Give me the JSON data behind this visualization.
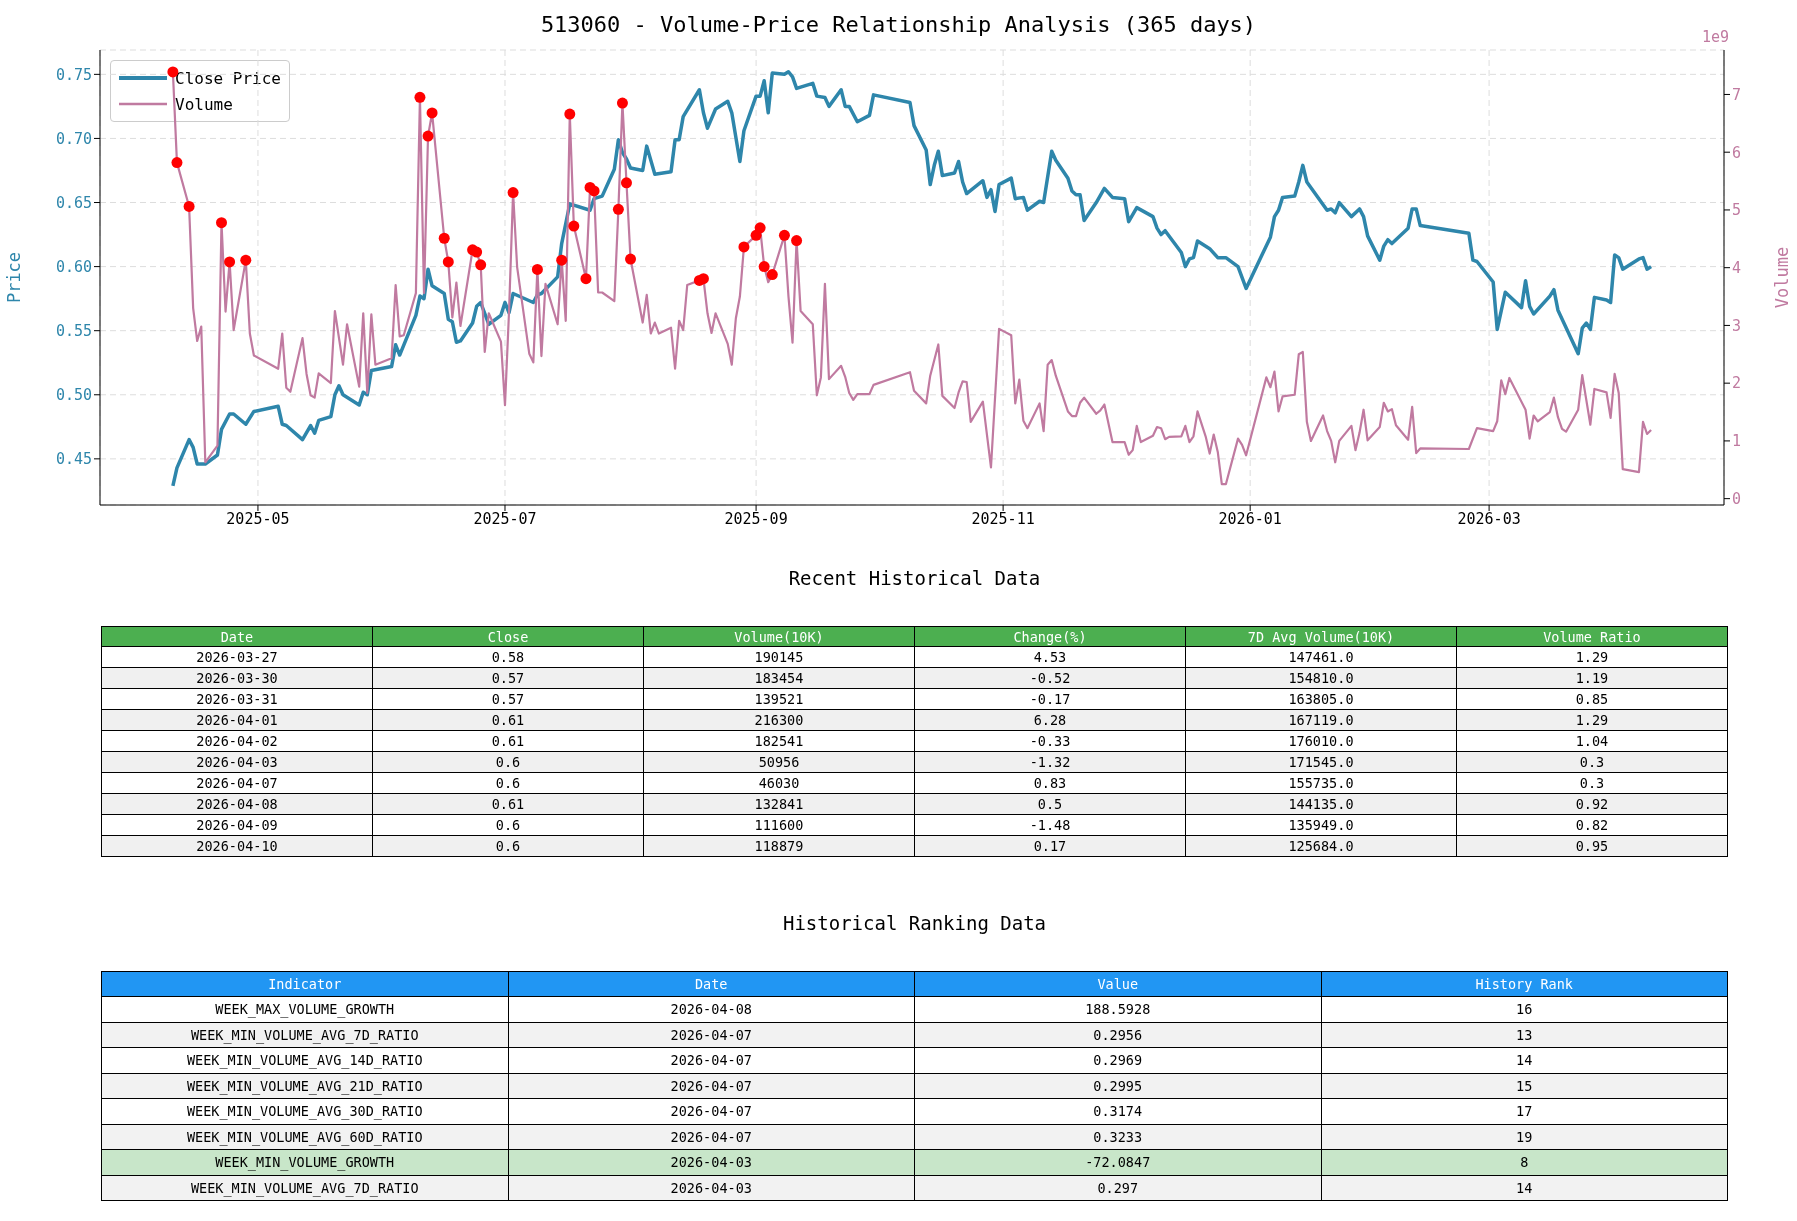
{
  "chart_data": [
    {
      "type": "line",
      "title": "513060 - Volume-Price Relationship Analysis (365 days)",
      "ylabel": "Price",
      "y2label": "Volume",
      "annotations": [
        "1e9"
      ],
      "xlim": [
        "2025-03-23",
        "2026-04-28"
      ],
      "xticks": [
        "2025-05",
        "2025-07",
        "2025-09",
        "2025-11",
        "2026-01",
        "2026-03"
      ],
      "ylim": [
        0.414,
        0.769
      ],
      "yticks": [
        0.45,
        {
          "value": 0.5,
          "label": "0.50"
        },
        0.55,
        {
          "value": 0.6,
          "label": "0.60"
        },
        0.65,
        {
          "value": 0.7,
          "label": "0.70"
        },
        0.75
      ],
      "y2lim": [
        -0.11,
        7.77
      ],
      "y2ticks": [
        0,
        1,
        2,
        3,
        4,
        5,
        6,
        7
      ],
      "grid": true,
      "legend": "top left",
      "marker": "none",
      "series": [
        {
          "name": "Close Price",
          "color": "#2e86ab",
          "x": [
            "2025-04-10",
            "2025-04-11",
            "2025-04-14",
            "2025-04-15",
            "2025-04-16",
            "2025-04-18",
            "2025-04-21",
            "2025-04-22",
            "2025-04-24",
            "2025-04-25",
            "2025-04-28",
            "2025-04-30",
            "2025-05-06",
            "2025-05-07",
            "2025-05-08",
            "2025-05-12",
            "2025-05-14",
            "2025-05-15",
            "2025-05-16",
            "2025-05-19",
            "2025-05-20",
            "2025-05-21",
            "2025-05-22",
            "2025-05-26",
            "2025-05-27",
            "2025-05-28",
            "2025-05-29",
            "2025-06-03",
            "2025-06-04",
            "2025-06-05",
            "2025-06-09",
            "2025-06-10",
            "2025-06-11",
            "2025-06-12",
            "2025-06-13",
            "2025-06-16",
            "2025-06-17",
            "2025-06-18",
            "2025-06-19",
            "2025-06-20",
            "2025-06-23",
            "2025-06-24",
            "2025-06-25",
            "2025-06-27",
            "2025-06-30",
            "2025-07-01",
            "2025-07-02",
            "2025-07-03",
            "2025-07-08",
            "2025-07-09",
            "2025-07-10",
            "2025-07-14",
            "2025-07-15",
            "2025-07-17",
            "2025-07-22",
            "2025-07-23",
            "2025-07-25",
            "2025-07-28",
            "2025-07-29",
            "2025-07-30",
            "2025-07-31",
            "2025-08-01",
            "2025-08-04",
            "2025-08-05",
            "2025-08-07",
            "2025-08-11",
            "2025-08-12",
            "2025-08-13",
            "2025-08-14",
            "2025-08-18",
            "2025-08-19",
            "2025-08-20",
            "2025-08-22",
            "2025-08-25",
            "2025-08-26",
            "2025-08-28",
            "2025-08-29",
            "2025-09-01",
            "2025-09-02",
            "2025-09-03",
            "2025-09-04",
            "2025-09-05",
            "2025-09-08",
            "2025-09-09",
            "2025-09-10",
            "2025-09-11",
            "2025-09-15",
            "2025-09-16",
            "2025-09-18",
            "2025-09-19",
            "2025-09-22",
            "2025-09-23",
            "2025-09-24",
            "2025-09-26",
            "2025-09-29",
            "2025-09-30",
            "2025-10-09",
            "2025-10-10",
            "2025-10-13",
            "2025-10-14",
            "2025-10-15",
            "2025-10-16",
            "2025-10-17",
            "2025-10-20",
            "2025-10-21",
            "2025-10-22",
            "2025-10-23",
            "2025-10-27",
            "2025-10-28",
            "2025-10-29",
            "2025-10-30",
            "2025-10-31",
            "2025-11-03",
            "2025-11-04",
            "2025-11-06",
            "2025-11-07",
            "2025-11-10",
            "2025-11-11",
            "2025-11-13",
            "2025-11-14",
            "2025-11-17",
            "2025-11-18",
            "2025-11-19",
            "2025-11-20",
            "2025-11-21",
            "2025-11-24",
            "2025-11-26",
            "2025-11-28",
            "2025-12-01",
            "2025-12-02",
            "2025-12-04",
            "2025-12-08",
            "2025-12-09",
            "2025-12-10",
            "2025-12-11",
            "2025-12-15",
            "2025-12-16",
            "2025-12-17",
            "2025-12-18",
            "2025-12-19",
            "2025-12-22",
            "2025-12-24",
            "2025-12-26",
            "2025-12-29",
            "2025-12-31",
            "2026-01-06",
            "2026-01-07",
            "2026-01-08",
            "2026-01-09",
            "2026-01-12",
            "2026-01-13",
            "2026-01-14",
            "2026-01-15",
            "2026-01-20",
            "2026-01-21",
            "2026-01-22",
            "2026-01-23",
            "2026-01-26",
            "2026-01-28",
            "2026-01-29",
            "2026-01-30",
            "2026-02-02",
            "2026-02-03",
            "2026-02-04",
            "2026-02-05",
            "2026-02-09",
            "2026-02-10",
            "2026-02-11",
            "2026-02-12",
            "2026-02-24",
            "2026-02-25",
            "2026-02-26",
            "2026-03-02",
            "2026-03-03",
            "2026-03-05",
            "2026-03-09",
            "2026-03-10",
            "2026-03-11",
            "2026-03-12",
            "2026-03-16",
            "2026-03-17",
            "2026-03-18",
            "2026-03-23",
            "2026-03-24",
            "2026-03-25",
            "2026-03-26",
            "2026-03-27",
            "2026-03-30",
            "2026-03-31",
            "2026-04-01",
            "2026-04-02",
            "2026-04-03",
            "2026-04-07",
            "2026-04-08",
            "2026-04-09",
            "2026-04-10"
          ],
          "values": [
            0.429,
            0.443,
            0.465,
            0.459,
            0.446,
            0.446,
            0.453,
            0.473,
            0.485,
            0.485,
            0.477,
            0.487,
            0.491,
            0.477,
            0.476,
            0.465,
            0.476,
            0.47,
            0.48,
            0.483,
            0.5,
            0.507,
            0.5,
            0.492,
            0.502,
            0.5,
            0.519,
            0.522,
            0.539,
            0.531,
            0.562,
            0.577,
            0.575,
            0.598,
            0.585,
            0.579,
            0.559,
            0.557,
            0.541,
            0.542,
            0.556,
            0.569,
            0.572,
            0.555,
            0.562,
            0.572,
            0.564,
            0.579,
            0.572,
            0.578,
            0.579,
            0.592,
            0.618,
            0.649,
            0.644,
            0.653,
            0.655,
            0.676,
            0.699,
            0.689,
            0.684,
            0.677,
            0.675,
            0.694,
            0.672,
            0.674,
            0.699,
            0.699,
            0.717,
            0.738,
            0.72,
            0.708,
            0.723,
            0.729,
            0.72,
            0.682,
            0.706,
            0.733,
            0.733,
            0.745,
            0.72,
            0.751,
            0.75,
            0.752,
            0.748,
            0.739,
            0.743,
            0.733,
            0.732,
            0.725,
            0.738,
            0.725,
            0.725,
            0.713,
            0.718,
            0.734,
            0.728,
            0.71,
            0.691,
            0.664,
            0.679,
            0.69,
            0.671,
            0.673,
            0.682,
            0.666,
            0.657,
            0.667,
            0.654,
            0.66,
            0.643,
            0.664,
            0.669,
            0.653,
            0.654,
            0.644,
            0.651,
            0.65,
            0.69,
            0.683,
            0.669,
            0.659,
            0.656,
            0.656,
            0.636,
            0.65,
            0.661,
            0.654,
            0.653,
            0.635,
            0.646,
            0.639,
            0.63,
            0.625,
            0.628,
            0.611,
            0.6,
            0.606,
            0.607,
            0.62,
            0.614,
            0.607,
            0.607,
            0.6,
            0.583,
            0.623,
            0.639,
            0.644,
            0.654,
            0.655,
            0.666,
            0.679,
            0.666,
            0.644,
            0.645,
            0.642,
            0.65,
            0.639,
            0.645,
            0.639,
            0.624,
            0.605,
            0.616,
            0.621,
            0.618,
            0.63,
            0.645,
            0.645,
            0.632,
            0.626,
            0.605,
            0.604,
            0.588,
            0.551,
            0.58,
            0.568,
            0.589,
            0.569,
            0.563,
            0.577,
            0.582,
            0.566,
            0.532,
            0.552,
            0.556,
            0.551,
            0.576,
            0.574,
            0.572,
            0.609,
            0.607,
            0.598,
            0.606,
            0.607,
            0.598,
            0.6
          ]
        },
        {
          "name": "Volume",
          "color": "#c07aa0",
          "axis": "y2",
          "x": [
            "2025-04-10",
            "2025-04-11",
            "2025-04-14",
            "2025-04-15",
            "2025-04-16",
            "2025-04-17",
            "2025-04-18",
            "2025-04-21",
            "2025-04-22",
            "2025-04-23",
            "2025-04-24",
            "2025-04-25",
            "2025-04-28",
            "2025-04-29",
            "2025-04-30",
            "2025-05-06",
            "2025-05-07",
            "2025-05-08",
            "2025-05-09",
            "2025-05-12",
            "2025-05-13",
            "2025-05-14",
            "2025-05-15",
            "2025-05-16",
            "2025-05-19",
            "2025-05-20",
            "2025-05-22",
            "2025-05-23",
            "2025-05-26",
            "2025-05-27",
            "2025-05-28",
            "2025-05-29",
            "2025-05-30",
            "2025-06-03",
            "2025-06-04",
            "2025-06-05",
            "2025-06-06",
            "2025-06-09",
            "2025-06-10",
            "2025-06-11",
            "2025-06-12",
            "2025-06-13",
            "2025-06-16",
            "2025-06-17",
            "2025-06-18",
            "2025-06-19",
            "2025-06-20",
            "2025-06-23",
            "2025-06-24",
            "2025-06-25",
            "2025-06-26",
            "2025-06-27",
            "2025-06-30",
            "2025-07-01",
            "2025-07-02",
            "2025-07-03",
            "2025-07-04",
            "2025-07-07",
            "2025-07-08",
            "2025-07-09",
            "2025-07-10",
            "2025-07-11",
            "2025-07-14",
            "2025-07-15",
            "2025-07-16",
            "2025-07-17",
            "2025-07-18",
            "2025-07-21",
            "2025-07-22",
            "2025-07-23",
            "2025-07-24",
            "2025-07-25",
            "2025-07-28",
            "2025-07-29",
            "2025-07-30",
            "2025-07-31",
            "2025-08-01",
            "2025-08-04",
            "2025-08-05",
            "2025-08-06",
            "2025-08-07",
            "2025-08-08",
            "2025-08-11",
            "2025-08-12",
            "2025-08-13",
            "2025-08-14",
            "2025-08-15",
            "2025-08-18",
            "2025-08-19",
            "2025-08-20",
            "2025-08-21",
            "2025-08-22",
            "2025-08-25",
            "2025-08-26",
            "2025-08-27",
            "2025-08-28",
            "2025-08-29",
            "2025-09-01",
            "2025-09-02",
            "2025-09-03",
            "2025-09-04",
            "2025-09-05",
            "2025-09-08",
            "2025-09-09",
            "2025-09-10",
            "2025-09-11",
            "2025-09-12",
            "2025-09-15",
            "2025-09-16",
            "2025-09-17",
            "2025-09-18",
            "2025-09-19",
            "2025-09-22",
            "2025-09-23",
            "2025-09-24",
            "2025-09-25",
            "2025-09-26",
            "2025-09-29",
            "2025-09-30",
            "2025-10-09",
            "2025-10-10",
            "2025-10-13",
            "2025-10-14",
            "2025-10-16",
            "2025-10-17",
            "2025-10-20",
            "2025-10-21",
            "2025-10-22",
            "2025-10-23",
            "2025-10-24",
            "2025-10-27",
            "2025-10-29",
            "2025-10-31",
            "2025-11-03",
            "2025-11-04",
            "2025-11-05",
            "2025-11-06",
            "2025-11-07",
            "2025-11-10",
            "2025-11-11",
            "2025-11-12",
            "2025-11-13",
            "2025-11-14",
            "2025-11-17",
            "2025-11-18",
            "2025-11-19",
            "2025-11-20",
            "2025-11-21",
            "2025-11-24",
            "2025-11-25",
            "2025-11-26",
            "2025-11-28",
            "2025-12-01",
            "2025-12-02",
            "2025-12-03",
            "2025-12-04",
            "2025-12-05",
            "2025-12-08",
            "2025-12-09",
            "2025-12-10",
            "2025-12-11",
            "2025-12-12",
            "2025-12-15",
            "2025-12-16",
            "2025-12-17",
            "2025-12-18",
            "2025-12-19",
            "2025-12-21",
            "2025-12-22",
            "2025-12-23",
            "2025-12-24",
            "2025-12-25",
            "2025-12-26",
            "2025-12-29",
            "2025-12-30",
            "2025-12-31",
            "2026-01-05",
            "2026-01-06",
            "2026-01-07",
            "2026-01-08",
            "2026-01-09",
            "2026-01-12",
            "2026-01-13",
            "2026-01-14",
            "2026-01-15",
            "2026-01-16",
            "2026-01-19",
            "2026-01-20",
            "2026-01-21",
            "2026-01-22",
            "2026-01-23",
            "2026-01-26",
            "2026-01-27",
            "2026-01-28",
            "2026-01-29",
            "2026-01-30",
            "2026-02-02",
            "2026-02-03",
            "2026-02-04",
            "2026-02-05",
            "2026-02-06",
            "2026-02-09",
            "2026-02-10",
            "2026-02-11",
            "2026-02-12",
            "2026-02-24",
            "2026-02-26",
            "2026-03-02",
            "2026-03-03",
            "2026-03-04",
            "2026-03-05",
            "2026-03-06",
            "2026-03-10",
            "2026-03-11",
            "2026-03-12",
            "2026-03-13",
            "2026-03-16",
            "2026-03-17",
            "2026-03-18",
            "2026-03-19",
            "2026-03-20",
            "2026-03-23",
            "2026-03-24",
            "2026-03-26",
            "2026-03-27",
            "2026-03-30",
            "2026-03-31",
            "2026-04-01",
            "2026-04-02",
            "2026-04-03",
            "2026-04-07",
            "2026-04-08",
            "2026-04-09",
            "2026-04-10"
          ],
          "values": [
            7.39,
            5.82,
            5.06,
            3.3,
            2.73,
            2.98,
            0.63,
            0.92,
            4.78,
            3.24,
            4.1,
            2.92,
            4.13,
            2.86,
            2.48,
            2.25,
            2.86,
            1.92,
            1.85,
            2.78,
            2.16,
            1.79,
            1.75,
            2.17,
            2.0,
            3.25,
            2.32,
            3.02,
            1.94,
            3.21,
            1.83,
            3.19,
            2.32,
            2.43,
            3.7,
            2.81,
            2.83,
            3.56,
            6.95,
            3.56,
            6.28,
            6.68,
            4.51,
            4.1,
            3.14,
            3.74,
            2.99,
            4.31,
            4.27,
            4.05,
            2.54,
            3.21,
            2.72,
            1.62,
            3.24,
            5.3,
            4.01,
            2.51,
            2.36,
            3.97,
            2.47,
            3.72,
            3.02,
            4.13,
            3.08,
            6.66,
            4.72,
            3.81,
            5.39,
            5.33,
            3.57,
            3.57,
            3.42,
            5.01,
            6.85,
            5.47,
            4.15,
            3.05,
            3.53,
            2.86,
            3.05,
            2.86,
            2.96,
            2.25,
            3.08,
            2.92,
            3.7,
            3.78,
            3.81,
            3.21,
            2.87,
            3.21,
            2.68,
            2.32,
            3.12,
            3.5,
            4.36,
            4.56,
            4.69,
            4.02,
            3.75,
            3.88,
            4.56,
            3.5,
            2.7,
            4.47,
            3.25,
            3.02,
            1.79,
            2.1,
            3.72,
            2.07,
            2.3,
            2.11,
            1.83,
            1.71,
            1.81,
            1.81,
            1.97,
            2.19,
            1.87,
            1.65,
            2.13,
            2.67,
            1.78,
            1.57,
            1.84,
            2.03,
            2.02,
            1.33,
            1.68,
            0.54,
            2.94,
            2.83,
            1.65,
            2.06,
            1.35,
            1.22,
            1.65,
            1.17,
            2.32,
            2.4,
            2.13,
            1.51,
            1.43,
            1.43,
            1.66,
            1.75,
            1.47,
            1.53,
            1.63,
            0.98,
            0.98,
            0.76,
            0.84,
            1.26,
            0.98,
            1.09,
            1.24,
            1.22,
            1.03,
            1.07,
            1.08,
            1.26,
            0.98,
            1.08,
            1.51,
            1.08,
            0.78,
            1.11,
            0.81,
            0.25,
            0.25,
            1.04,
            0.93,
            0.75,
            2.1,
            1.93,
            2.2,
            1.51,
            1.77,
            1.8,
            2.5,
            2.54,
            1.33,
            1.0,
            1.44,
            1.17,
            1.0,
            0.63,
            1.0,
            1.26,
            0.84,
            1.14,
            1.54,
            1.01,
            1.24,
            1.66,
            1.51,
            1.55,
            1.27,
            1.02,
            1.59,
            0.79,
            0.87,
            0.86,
            1.22,
            1.17,
            1.34,
            2.05,
            1.81,
            2.09,
            1.54,
            1.04,
            1.44,
            1.34,
            1.5,
            1.75,
            1.41,
            1.21,
            1.16,
            1.54,
            2.14,
            1.28,
            1.9,
            1.84,
            1.4,
            2.16,
            1.83,
            0.51,
            0.46,
            1.33,
            1.12,
            1.19
          ]
        },
        {
          "type": "scatter",
          "color": "#ff0000",
          "axis": "y2",
          "marker": "circle",
          "x": [
            "2025-04-10",
            "2025-04-11",
            "2025-04-14",
            "2025-04-22",
            "2025-04-24",
            "2025-04-28",
            "2025-06-10",
            "2025-06-12",
            "2025-06-13",
            "2025-06-16",
            "2025-06-17",
            "2025-06-23",
            "2025-06-24",
            "2025-06-25",
            "2025-07-03",
            "2025-07-09",
            "2025-07-15",
            "2025-07-17",
            "2025-07-18",
            "2025-07-21",
            "2025-07-22",
            "2025-07-23",
            "2025-07-29",
            "2025-07-30",
            "2025-07-31",
            "2025-08-01",
            "2025-08-18",
            "2025-08-19",
            "2025-08-29",
            "2025-09-01",
            "2025-09-02",
            "2025-09-03",
            "2025-09-05",
            "2025-09-08",
            "2025-09-11"
          ],
          "values": [
            7.39,
            5.82,
            5.06,
            4.78,
            4.1,
            4.13,
            6.95,
            6.28,
            6.68,
            4.51,
            4.1,
            4.31,
            4.27,
            4.05,
            5.3,
            3.97,
            4.13,
            6.66,
            4.72,
            3.81,
            5.39,
            5.33,
            5.01,
            6.85,
            5.47,
            4.15,
            3.78,
            3.81,
            4.36,
            4.56,
            4.69,
            4.02,
            3.88,
            4.56,
            4.47
          ]
        }
      ]
    },
    {
      "type": "other",
      "title": "Recent Historical Data",
      "categories": [
        "Date",
        "Close",
        "Volume(10K)",
        "Change(%)",
        "7D Avg Volume(10K)",
        "Volume Ratio"
      ],
      "colors": [
        "#4caf50",
        "#ffffff",
        "#f0f0f0",
        "#ffffff",
        "#f0f0f0",
        "#ffffff",
        "#f0f0f0",
        "#ffffff",
        "#f0f0f0",
        "#ffffff",
        "#f0f0f0"
      ],
      "cell_labels": [
        [
          "2026-03-27",
          "0.58",
          "190145",
          "4.53",
          "147461.0",
          "1.29"
        ],
        [
          "2026-03-30",
          "0.57",
          "183454",
          "-0.52",
          "154810.0",
          "1.19"
        ],
        [
          "2026-03-31",
          "0.57",
          "139521",
          "-0.17",
          "163805.0",
          "0.85"
        ],
        [
          "2026-04-01",
          "0.61",
          "216300",
          "6.28",
          "167119.0",
          "1.29"
        ],
        [
          "2026-04-02",
          "0.61",
          "182541",
          "-0.33",
          "176010.0",
          "1.04"
        ],
        [
          "2026-04-03",
          "0.6",
          "50956",
          "-1.32",
          "171545.0",
          "0.3"
        ],
        [
          "2026-04-07",
          "0.6",
          "46030",
          "0.83",
          "155735.0",
          "0.3"
        ],
        [
          "2026-04-08",
          "0.61",
          "132841",
          "0.5",
          "144135.0",
          "0.92"
        ],
        [
          "2026-04-09",
          "0.6",
          "111600",
          "-1.48",
          "135949.0",
          "0.82"
        ],
        [
          "2026-04-10",
          "0.6",
          "118879",
          "0.17",
          "125684.0",
          "0.95"
        ]
      ]
    },
    {
      "type": "other",
      "title": "Historical Ranking Data",
      "categories": [
        "Indicator",
        "Date",
        "Value",
        "History Rank"
      ],
      "colors": [
        "#2196f3",
        "#ffffff",
        "#f2f2f2",
        "#ffffff",
        "#f2f2f2",
        "#ffffff",
        "#f2f2f2",
        "#c8e6c9",
        "#f2f2f2"
      ],
      "cell_labels": [
        [
          "WEEK_MAX_VOLUME_GROWTH",
          "2026-04-08",
          "188.5928",
          "16"
        ],
        [
          "WEEK_MIN_VOLUME_AVG_7D_RATIO",
          "2026-04-07",
          "0.2956",
          "13"
        ],
        [
          "WEEK_MIN_VOLUME_AVG_14D_RATIO",
          "2026-04-07",
          "0.2969",
          "14"
        ],
        [
          "WEEK_MIN_VOLUME_AVG_21D_RATIO",
          "2026-04-07",
          "0.2995",
          "15"
        ],
        [
          "WEEK_MIN_VOLUME_AVG_30D_RATIO",
          "2026-04-07",
          "0.3174",
          "17"
        ],
        [
          "WEEK_MIN_VOLUME_AVG_60D_RATIO",
          "2026-04-07",
          "0.3233",
          "19"
        ],
        [
          "WEEK_MIN_VOLUME_GROWTH",
          "2026-04-03",
          "-72.0847",
          "8"
        ],
        [
          "WEEK_MIN_VOLUME_AVG_7D_RATIO",
          "2026-04-03",
          "0.297",
          "14"
        ]
      ]
    }
  ]
}
